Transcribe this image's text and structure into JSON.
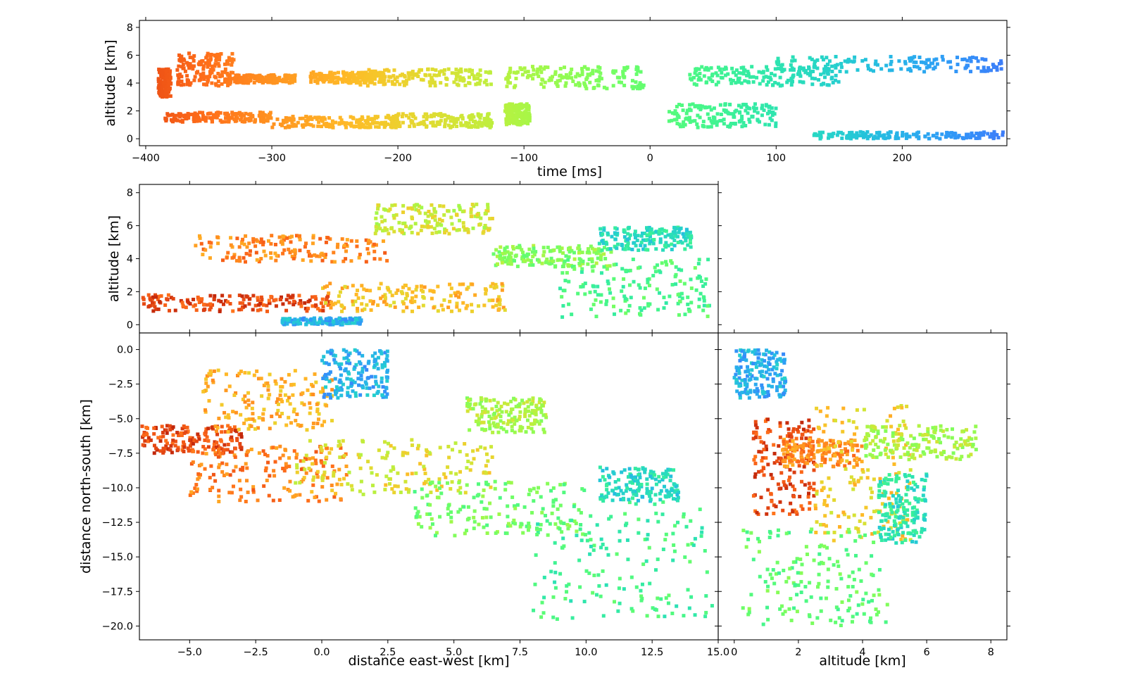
{
  "chart_data": [
    {
      "id": "time-altitude",
      "type": "scatter",
      "xlabel": "time [ms]",
      "ylabel": "altitude [km]",
      "xlim": [
        -405,
        283
      ],
      "ylim": [
        -0.5,
        8.5
      ],
      "xticks": [
        -400,
        -300,
        -200,
        -100,
        0,
        100,
        200
      ],
      "xtick_labels": [
        "−400",
        "−300",
        "−200",
        "−100",
        "0",
        "100",
        "200"
      ],
      "yticks": [
        0,
        2,
        4,
        6,
        8
      ],
      "ytick_labels": [
        "0",
        "2",
        "4",
        "6",
        "8"
      ],
      "color_by": "time",
      "colormap": "turbo",
      "clusters": [
        {
          "x": [
            -390,
            -380
          ],
          "y": [
            3.0,
            5.0
          ]
        },
        {
          "x": [
            -385,
            -300
          ],
          "y": [
            1.2,
            1.9
          ]
        },
        {
          "x": [
            -375,
            -330
          ],
          "y": [
            3.8,
            6.2
          ]
        },
        {
          "x": [
            -330,
            -280
          ],
          "y": [
            4.0,
            4.6
          ]
        },
        {
          "x": [
            -300,
            -200
          ],
          "y": [
            0.8,
            1.6
          ]
        },
        {
          "x": [
            -270,
            -210
          ],
          "y": [
            4.0,
            4.8
          ]
        },
        {
          "x": [
            -230,
            -125
          ],
          "y": [
            3.8,
            5.0
          ]
        },
        {
          "x": [
            -210,
            -125
          ],
          "y": [
            0.8,
            1.8
          ]
        },
        {
          "x": [
            -115,
            -5
          ],
          "y": [
            3.6,
            5.2
          ]
        },
        {
          "x": [
            -115,
            -95
          ],
          "y": [
            1.0,
            2.5
          ]
        },
        {
          "x": [
            15,
            100
          ],
          "y": [
            0.8,
            2.5
          ]
        },
        {
          "x": [
            30,
            150
          ],
          "y": [
            3.8,
            5.2
          ]
        },
        {
          "x": [
            100,
            280
          ],
          "y": [
            4.8,
            5.9
          ]
        },
        {
          "x": [
            130,
            280
          ],
          "y": [
            0.0,
            0.5
          ]
        }
      ]
    },
    {
      "id": "eastwest-altitude",
      "type": "scatter",
      "xlabel": "",
      "ylabel": "altitude [km]",
      "xlim": [
        -6.9,
        15.0
      ],
      "ylim": [
        -0.5,
        8.5
      ],
      "xticks": [
        -5.0,
        -2.5,
        0.0,
        2.5,
        5.0,
        7.5,
        10.0,
        12.5,
        15.0
      ],
      "yticks": [
        0,
        2,
        4,
        6,
        8
      ],
      "ytick_labels": [
        "0",
        "2",
        "4",
        "6",
        "8"
      ],
      "color_by": "time",
      "colormap": "turbo",
      "clusters": [
        {
          "x": [
            -6.8,
            0.5
          ],
          "y": [
            0.8,
            1.8
          ]
        },
        {
          "x": [
            -4.8,
            2.5
          ],
          "y": [
            3.8,
            5.4
          ]
        },
        {
          "x": [
            0.0,
            7.0
          ],
          "y": [
            0.8,
            2.5
          ]
        },
        {
          "x": [
            2.0,
            6.5
          ],
          "y": [
            5.5,
            7.3
          ]
        },
        {
          "x": [
            6.5,
            11.0
          ],
          "y": [
            3.5,
            4.8
          ]
        },
        {
          "x": [
            9.0,
            14.8
          ],
          "y": [
            0.4,
            4.0
          ]
        },
        {
          "x": [
            10.5,
            14.0
          ],
          "y": [
            4.5,
            5.9
          ]
        },
        {
          "x": [
            -1.5,
            1.5
          ],
          "y": [
            0.0,
            0.4
          ]
        }
      ]
    },
    {
      "id": "plan-view",
      "type": "scatter",
      "xlabel": "distance east-west [km]",
      "ylabel": "distance north-south [km]",
      "xlim": [
        -6.9,
        15.0
      ],
      "ylim": [
        -21.0,
        1.2
      ],
      "xticks": [
        -5.0,
        -2.5,
        0.0,
        2.5,
        5.0,
        7.5,
        10.0,
        12.5,
        15.0
      ],
      "xtick_labels": [
        "−5.0",
        "−2.5",
        "0.0",
        "2.5",
        "5.0",
        "7.5",
        "10.0",
        "12.5",
        "15.0"
      ],
      "yticks": [
        0.0,
        -2.5,
        -5.0,
        -7.5,
        -10.0,
        -12.5,
        -15.0,
        -17.5,
        -20.0
      ],
      "ytick_labels": [
        "0.0",
        "−2.5",
        "−5.0",
        "−7.5",
        "−10.0",
        "−12.5",
        "−15.0",
        "−17.5",
        "−20.0"
      ],
      "color_by": "time",
      "colormap": "turbo",
      "clusters": [
        {
          "x": [
            -6.8,
            -3.0
          ],
          "y": [
            -7.5,
            -5.5
          ]
        },
        {
          "x": [
            -5.0,
            1.0
          ],
          "y": [
            -11.0,
            -7.0
          ]
        },
        {
          "x": [
            -4.5,
            0.5
          ],
          "y": [
            -6.0,
            -1.5
          ]
        },
        {
          "x": [
            -1.0,
            6.5
          ],
          "y": [
            -10.5,
            -6.5
          ]
        },
        {
          "x": [
            5.5,
            8.5
          ],
          "y": [
            -6.0,
            -3.5
          ]
        },
        {
          "x": [
            3.5,
            10.0
          ],
          "y": [
            -13.5,
            -9.5
          ]
        },
        {
          "x": [
            8.0,
            14.8
          ],
          "y": [
            -19.5,
            -11.0
          ]
        },
        {
          "x": [
            10.5,
            13.5
          ],
          "y": [
            -11.0,
            -8.5
          ]
        },
        {
          "x": [
            0.0,
            2.5
          ],
          "y": [
            -3.5,
            0.0
          ]
        }
      ]
    },
    {
      "id": "altitude-northsouth",
      "type": "scatter",
      "xlabel": "altitude [km]",
      "ylabel": "",
      "xlim": [
        -0.5,
        8.5
      ],
      "ylim": [
        -21.0,
        1.2
      ],
      "xticks": [
        0,
        2,
        4,
        6,
        8
      ],
      "xtick_labels": [
        "0",
        "2",
        "4",
        "6",
        "8"
      ],
      "yticks": [
        0.0,
        -2.5,
        -5.0,
        -7.5,
        -10.0,
        -12.5,
        -15.0,
        -17.5,
        -20.0
      ],
      "color_by": "time",
      "colormap": "turbo",
      "clusters": [
        {
          "x": [
            0.6,
            2.5
          ],
          "y": [
            -12.0,
            -5.0
          ]
        },
        {
          "x": [
            1.5,
            4.0
          ],
          "y": [
            -8.5,
            -6.5
          ]
        },
        {
          "x": [
            2.5,
            5.5
          ],
          "y": [
            -14.0,
            -4.0
          ]
        },
        {
          "x": [
            4.0,
            7.6
          ],
          "y": [
            -8.0,
            -5.5
          ]
        },
        {
          "x": [
            0.2,
            4.8
          ],
          "y": [
            -20.0,
            -13.0
          ]
        },
        {
          "x": [
            4.5,
            6.0
          ],
          "y": [
            -14.0,
            -9.0
          ]
        },
        {
          "x": [
            0.0,
            1.6
          ],
          "y": [
            -3.5,
            0.0
          ]
        }
      ]
    }
  ]
}
